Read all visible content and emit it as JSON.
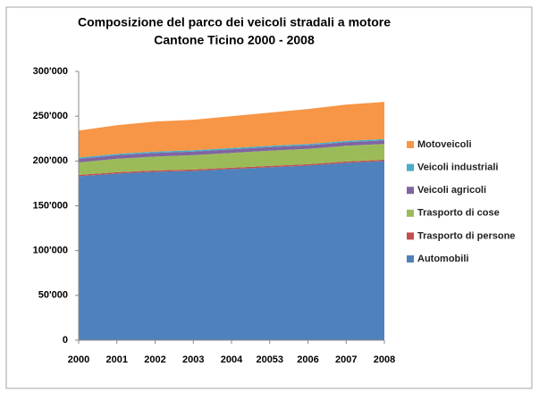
{
  "chart_data": {
    "type": "stacked_area",
    "title": "Composizione del parco dei veicoli stradali a motore",
    "subtitle": "Cantone Ticino 2000 - 2008",
    "categories": [
      "2000",
      "2001",
      "2002",
      "2003",
      "2004",
      "20053",
      "2006",
      "2007",
      "2008"
    ],
    "series": [
      {
        "name": "Automobili",
        "color": "#4f81bd",
        "values": [
          183000,
          186000,
          188000,
          189000,
          191000,
          193000,
          195000,
          198000,
          200000
        ]
      },
      {
        "name": "Trasporto di persone",
        "color": "#c0504d",
        "values": [
          1500,
          1500,
          1500,
          1500,
          1500,
          1500,
          1500,
          1500,
          1500
        ]
      },
      {
        "name": "Trasporto di cose",
        "color": "#9bbb59",
        "values": [
          14000,
          15000,
          15500,
          16000,
          16500,
          17000,
          17000,
          17500,
          17500
        ]
      },
      {
        "name": "Veicoli agricoli",
        "color": "#8064a2",
        "values": [
          4000,
          4000,
          4000,
          4000,
          4000,
          4000,
          4000,
          4000,
          4000
        ]
      },
      {
        "name": "Veicoli industriali",
        "color": "#4bacc6",
        "values": [
          1500,
          1500,
          1500,
          1500,
          1500,
          1500,
          1500,
          1500,
          1500
        ]
      },
      {
        "name": "Motoveicoli",
        "color": "#f79646",
        "values": [
          30000,
          32000,
          33500,
          34000,
          35500,
          37000,
          39000,
          40500,
          41500
        ]
      }
    ],
    "ylim": [
      0,
      300000
    ],
    "yticks": [
      0,
      {
        "value": 50000,
        "label": "50'000"
      },
      {
        "value": 100000,
        "label": "100'000"
      },
      {
        "value": 150000,
        "label": "150'000"
      },
      {
        "value": 200000,
        "label": "200'000"
      },
      {
        "value": 250000,
        "label": "250'000"
      },
      {
        "value": 300000,
        "label": "300'000"
      }
    ],
    "legend": "right"
  }
}
